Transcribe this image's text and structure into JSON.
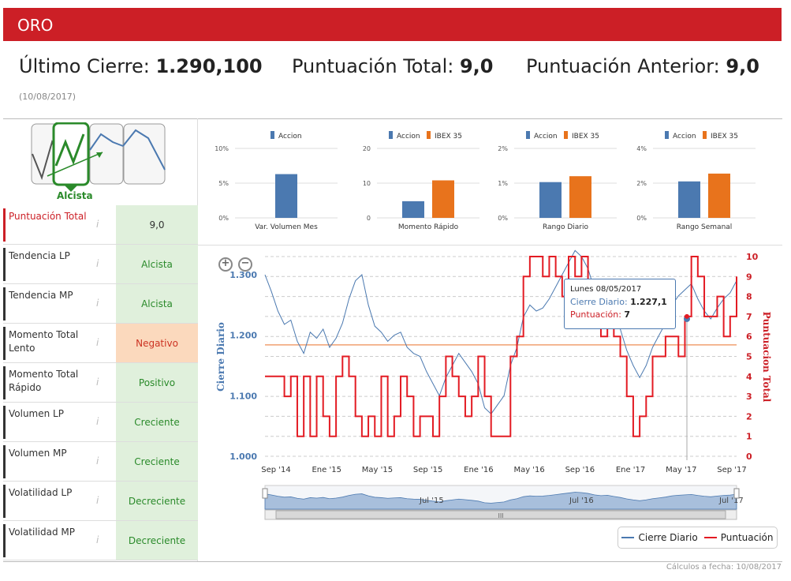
{
  "header": {
    "title": "ORO"
  },
  "summary": {
    "close_label": "Último Cierre:",
    "close_value": "1.290,100",
    "total_label": "Puntuación Total:",
    "total_value": "9,0",
    "prev_label": "Puntuación Anterior:",
    "prev_value": "9,0",
    "date": "(10/08/2017)"
  },
  "trend": {
    "label": "Alcista"
  },
  "rows": [
    {
      "name": "Puntuación Total",
      "value": "9,0",
      "style": "score"
    },
    {
      "name": "Tendencia LP",
      "value": "Alcista",
      "style": "green"
    },
    {
      "name": "Tendencia MP",
      "value": "Alcista",
      "style": "green"
    },
    {
      "name": "Momento Total Lento",
      "value": "Negativo",
      "style": "orange"
    },
    {
      "name": "Momento Total Rápido",
      "value": "Positivo",
      "style": "green"
    },
    {
      "name": "Volumen LP",
      "value": "Creciente",
      "style": "green"
    },
    {
      "name": "Volumen MP",
      "value": "Creciente",
      "style": "green"
    },
    {
      "name": "Volatilidad LP",
      "value": "Decreciente",
      "style": "green"
    },
    {
      "name": "Volatilidad MP",
      "value": "Decreciente",
      "style": "green"
    }
  ],
  "info_icon": "i",
  "chart_data": [
    {
      "type": "bar",
      "title": "Var. Volumen Mes",
      "legend": [
        "Accion"
      ],
      "yticks": [
        "10%",
        "5%",
        "0%"
      ],
      "ylim": [
        0,
        10
      ],
      "series": [
        {
          "name": "Accion",
          "values": [
            6.3
          ]
        }
      ]
    },
    {
      "type": "bar",
      "title": "Momento Rápido",
      "legend": [
        "Accion",
        "IBEX 35"
      ],
      "yticks": [
        "20",
        "10",
        "0"
      ],
      "ylim": [
        0,
        20
      ],
      "series": [
        {
          "name": "Accion",
          "values": [
            4.8
          ]
        },
        {
          "name": "IBEX 35",
          "values": [
            10.8
          ]
        }
      ]
    },
    {
      "type": "bar",
      "title": "Rango Diario",
      "legend": [
        "Accion",
        "IBEX 35"
      ],
      "yticks": [
        "2%",
        "1%",
        "0%"
      ],
      "ylim": [
        0,
        2
      ],
      "series": [
        {
          "name": "Accion",
          "values": [
            1.03
          ]
        },
        {
          "name": "IBEX 35",
          "values": [
            1.2
          ]
        }
      ]
    },
    {
      "type": "bar",
      "title": "Rango Semanal",
      "legend": [
        "Accion",
        "IBEX 35"
      ],
      "yticks": [
        "4%",
        "2%",
        "0%"
      ],
      "ylim": [
        0,
        4
      ],
      "series": [
        {
          "name": "Accion",
          "values": [
            2.1
          ]
        },
        {
          "name": "IBEX 35",
          "values": [
            2.55
          ]
        }
      ]
    },
    {
      "type": "line",
      "title": "",
      "ylabel": "Cierre Diario",
      "y2label": "Puntuacion Total",
      "ylim": [
        1.0,
        1.33
      ],
      "y2lim": [
        0,
        10
      ],
      "yticks": [
        "1.300",
        "1.200",
        "1.100",
        "1.000"
      ],
      "y2ticks": [
        "10",
        "9",
        "8",
        "7",
        "6",
        "5",
        "4",
        "3",
        "2",
        "1",
        "0"
      ],
      "xticks": [
        "Sep '14",
        "Ene '15",
        "May '15",
        "Sep '15",
        "Ene '16",
        "May '16",
        "Sep '16",
        "Ene '17",
        "May '17",
        "Sep '17"
      ],
      "navigator_labels": [
        "Jul '15",
        "Jul '16",
        "Jul '17"
      ],
      "navigator_scroll": "III",
      "reference_line": 1.184,
      "series": [
        {
          "name": "Cierre Diario",
          "color": "#4b79b0",
          "values": [
            1.3,
            1.272,
            1.24,
            1.218,
            1.225,
            1.19,
            1.17,
            1.205,
            1.195,
            1.21,
            1.18,
            1.195,
            1.22,
            1.26,
            1.29,
            1.3,
            1.25,
            1.215,
            1.205,
            1.19,
            1.2,
            1.205,
            1.18,
            1.17,
            1.165,
            1.14,
            1.12,
            1.1,
            1.13,
            1.15,
            1.17,
            1.155,
            1.14,
            1.12,
            1.08,
            1.07,
            1.085,
            1.1,
            1.15,
            1.18,
            1.23,
            1.25,
            1.24,
            1.245,
            1.26,
            1.28,
            1.3,
            1.32,
            1.34,
            1.33,
            1.31,
            1.275,
            1.255,
            1.265,
            1.235,
            1.21,
            1.175,
            1.15,
            1.13,
            1.15,
            1.18,
            1.2,
            1.22,
            1.25,
            1.265,
            1.275,
            1.285,
            1.26,
            1.24,
            1.227,
            1.245,
            1.26,
            1.27,
            1.29
          ]
        },
        {
          "name": "Puntuación",
          "color": "#e31b23",
          "values": [
            4,
            4,
            4,
            3,
            4,
            1,
            4,
            1,
            4,
            2,
            1,
            4,
            5,
            4,
            2,
            1,
            2,
            1,
            4,
            1,
            2,
            4,
            3,
            1,
            2,
            2,
            1,
            3,
            5,
            4,
            3,
            2,
            3,
            5,
            3,
            1,
            1,
            1,
            5,
            6,
            9,
            10,
            10,
            9,
            10,
            9,
            8,
            10,
            9,
            10,
            8,
            7,
            6,
            7,
            6,
            5,
            3,
            1,
            2,
            3,
            5,
            5,
            6,
            6,
            5,
            7,
            10,
            9,
            7,
            7,
            8,
            6,
            7,
            9
          ]
        }
      ],
      "tooltip": {
        "date": "Lunes 08/05/2017",
        "close_label": "Cierre Diario:",
        "close_value": "1.227,1",
        "score_label": "Puntuación:",
        "score_value": "7"
      },
      "legend": [
        "Cierre Diario",
        "Puntuación"
      ]
    }
  ],
  "footer": "Cálculos a fecha: 10/08/2017",
  "colors": {
    "brand": "#cc1f26",
    "accion": "#4b79b0",
    "ibex": "#e8731c",
    "score": "#e31b23"
  }
}
